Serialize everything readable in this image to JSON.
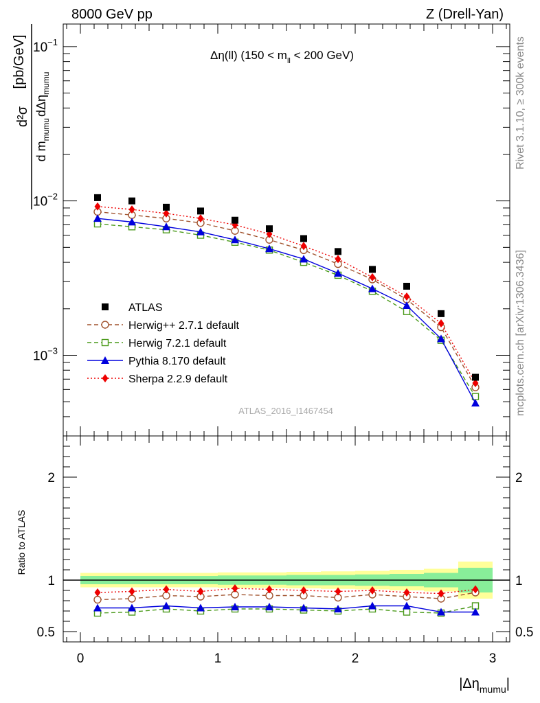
{
  "header": {
    "energy_label": "8000 GeV pp",
    "process_label": "Z (Drell-Yan)"
  },
  "side_labels": {
    "rivet": "Rivet 3.1.10, ≥ 300k events",
    "mcplots": "mcplots.cern.ch [arXiv:1306.3436]"
  },
  "chart_data": {
    "type": "scatter",
    "title": "Δη(ll) (150 < m_ll < 200 GeV)",
    "title_parts": {
      "main": "Δη(ll) (150 < m",
      "sub": "ll",
      "tail": " < 200 GeV)"
    },
    "watermark": "ATLAS_2016_I1467454",
    "xlabel": "|Δη_mumu|",
    "xlabel_parts": {
      "main": "|Δη",
      "sub": "mumu",
      "tail": "|"
    },
    "ylabel": "d²σ / d m_mumu dΔη_mumu [pb/GeV]",
    "ylabel_parts": {
      "num": "d²σ",
      "den_d": "d m",
      "den_sub1": "mumu",
      "den_d2": "dΔη",
      "den_sub2": "mumu",
      "unit": "[pb/GeV]"
    },
    "xlim": [
      -0.125,
      3.125
    ],
    "ylim": [
      0.0003,
      0.14
    ],
    "yscale": "log",
    "x_ticks": [
      "0",
      "1",
      "2",
      "3"
    ],
    "x_tick_values": [
      0,
      1,
      2,
      3
    ],
    "y_ticks": [
      {
        "value": 0.1,
        "base": "10",
        "exp": "−1"
      },
      {
        "value": 0.01,
        "base": "10",
        "exp": "−2"
      },
      {
        "value": 0.001,
        "base": "10",
        "exp": "−3"
      }
    ],
    "x": [
      0.125,
      0.375,
      0.625,
      0.875,
      1.125,
      1.375,
      1.625,
      1.875,
      2.125,
      2.375,
      2.625,
      2.875
    ],
    "series": [
      {
        "name": "ATLAS",
        "color": "#000000",
        "marker": "filled-square",
        "line": "none",
        "values": [
          0.0105,
          0.01,
          0.0091,
          0.0086,
          0.0075,
          0.0066,
          0.0057,
          0.0047,
          0.0036,
          0.0028,
          0.00186,
          0.00072
        ]
      },
      {
        "name": "Herwig++ 2.7.1 default",
        "color": "#a0522d",
        "marker": "open-circle",
        "line": "dashed",
        "values": [
          0.0085,
          0.0081,
          0.0077,
          0.0072,
          0.0064,
          0.0056,
          0.0048,
          0.0039,
          0.0031,
          0.0023,
          0.00152,
          0.00062
        ]
      },
      {
        "name": "Herwig 7.2.1 default",
        "color": "#4a9a1a",
        "marker": "open-square",
        "line": "dashed",
        "values": [
          0.0071,
          0.0068,
          0.0065,
          0.006,
          0.0054,
          0.0048,
          0.004,
          0.0033,
          0.0026,
          0.00192,
          0.00125,
          0.00054
        ]
      },
      {
        "name": "Pythia 8.170 default",
        "color": "#0000dd",
        "marker": "filled-triangle",
        "line": "solid",
        "values": [
          0.0077,
          0.0073,
          0.0068,
          0.0063,
          0.0056,
          0.0049,
          0.0042,
          0.0034,
          0.0027,
          0.0021,
          0.00128,
          0.00049
        ]
      },
      {
        "name": "Sherpa 2.2.9 default",
        "color": "#ee0000",
        "marker": "filled-diamond",
        "line": "dotted",
        "values": [
          0.0092,
          0.0088,
          0.0083,
          0.0077,
          0.007,
          0.0061,
          0.0051,
          0.0042,
          0.0032,
          0.0024,
          0.00161,
          0.00066
        ]
      }
    ],
    "ratio": {
      "ylabel": "Ratio to ATLAS",
      "ylim": [
        0.4,
        2.4
      ],
      "y_ticks": [
        {
          "value": 0.5,
          "label": "0.5"
        },
        {
          "value": 1,
          "label": "1"
        },
        {
          "value": 2,
          "label": "2"
        }
      ],
      "band_outer": [
        0.07,
        0.07,
        0.07,
        0.07,
        0.075,
        0.075,
        0.08,
        0.085,
        0.09,
        0.1,
        0.11,
        0.18
      ],
      "band_inner": [
        0.04,
        0.04,
        0.04,
        0.04,
        0.045,
        0.045,
        0.05,
        0.05,
        0.055,
        0.06,
        0.07,
        0.12
      ],
      "band_outer_color": "#ffff99",
      "band_inner_color": "#88ee99",
      "series": [
        {
          "name": "Herwig++ 2.7.1 default",
          "values": [
            0.81,
            0.82,
            0.85,
            0.84,
            0.86,
            0.85,
            0.85,
            0.83,
            0.86,
            0.84,
            0.82,
            0.88
          ]
        },
        {
          "name": "Herwig 7.2.1 default",
          "values": [
            0.68,
            0.69,
            0.72,
            0.7,
            0.72,
            0.72,
            0.71,
            0.7,
            0.72,
            0.69,
            0.68,
            0.75
          ]
        },
        {
          "name": "Pythia 8.170 default",
          "values": [
            0.73,
            0.73,
            0.75,
            0.73,
            0.74,
            0.74,
            0.73,
            0.72,
            0.75,
            0.75,
            0.69,
            0.69
          ]
        },
        {
          "name": "Sherpa 2.2.9 default",
          "values": [
            0.88,
            0.89,
            0.91,
            0.89,
            0.92,
            0.91,
            0.9,
            0.89,
            0.9,
            0.88,
            0.87,
            0.91
          ]
        }
      ]
    }
  }
}
